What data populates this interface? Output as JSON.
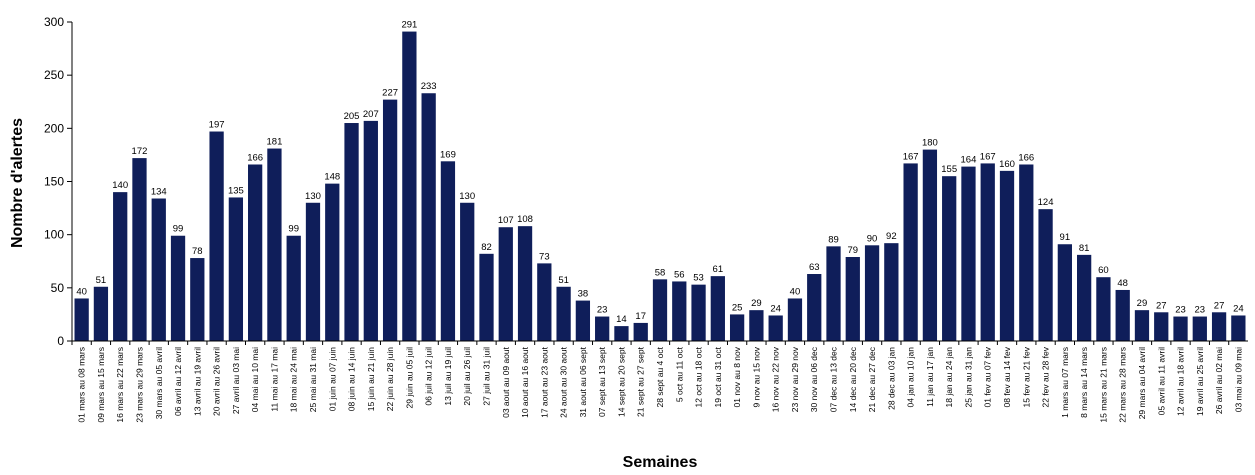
{
  "chart_data": {
    "type": "bar",
    "xlabel": "Semaines",
    "ylabel": "Nombre d'alertes",
    "ylim": [
      0,
      300
    ],
    "yticks": [
      0,
      50,
      100,
      150,
      200,
      250,
      300
    ],
    "grid": false,
    "colors": {
      "bar": "#0f1e5a",
      "axis": "#000000"
    },
    "categories": [
      "01 mars au 08 mars",
      "09 mars au 15 mars",
      "16 mars au 22 mars",
      "23 mars au 29 mars",
      "30 mars au 05 avril",
      "06 avril au 12 avril",
      "13 avril au 19 avril",
      "20 avril au 26 avril",
      "27 avril au 03 mai",
      "04 mai au 10 mai",
      "11 mai au 17 mai",
      "18 mai au 24 mai",
      "25 mai au 31 mai",
      "01 juin au 07 juin",
      "08 juin au 14 juin",
      "15 juin au 21 juin",
      "22 juin au 28 juin",
      "29 juin au 05 juil",
      "06 juil au 12 juil",
      "13 juil au 19 juil",
      "20 juil au 26 juil",
      "27 juil au 31 juil",
      "03 aout au 09 aout",
      "10 aout au 16 aout",
      "17 aout au 23 aout",
      "24 aout au 30 aout",
      "31 aout au 06 sept",
      "07 sept au 13 sept",
      "14 sept au 20 sept",
      "21 sept au 27 sept",
      "28 sept au 4 oct",
      "5 oct au 11 oct",
      "12 oct au 18 oct",
      "19 oct au 31 oct",
      "01 nov au 8 nov",
      "9 nov au 15 nov",
      "16 nov au 22 nov",
      "23 nov au 29 nov",
      "30 nov au 06 dec",
      "07 dec au 13 dec",
      "14 dec au 20 dec",
      "21 dec au 27 dec",
      "28 dec au 03 jan",
      "04 jan au 10 jan",
      "11 jan au 17 jan",
      "18 jan au 24 jan",
      "25 jan au 31 jan",
      "01 fev au 07 fev",
      "08 fev au 14 fev",
      "15 fev au 21 fev",
      "22 fev au 28 fev",
      "1 mars au 07 mars",
      "8 mars au 14 mars",
      "15 mars au 21 mars",
      "22 mars au 28 mars",
      "29 mars au 04 avril",
      "05 avril au 11 avril",
      "12 avril au 18 avril",
      "19 avril au 25 avril",
      "26 avril au 02 mai",
      "03 mai au 09 mai"
    ],
    "values": [
      40,
      51,
      140,
      172,
      134,
      99,
      78,
      197,
      135,
      166,
      181,
      99,
      130,
      148,
      205,
      207,
      227,
      291,
      233,
      169,
      130,
      82,
      107,
      108,
      73,
      51,
      38,
      23,
      14,
      17,
      58,
      56,
      53,
      61,
      25,
      29,
      24,
      40,
      63,
      89,
      79,
      90,
      92,
      167,
      180,
      155,
      164,
      167,
      160,
      166,
      124,
      91,
      81,
      60,
      48,
      29,
      27,
      23,
      23,
      27,
      24
    ]
  }
}
